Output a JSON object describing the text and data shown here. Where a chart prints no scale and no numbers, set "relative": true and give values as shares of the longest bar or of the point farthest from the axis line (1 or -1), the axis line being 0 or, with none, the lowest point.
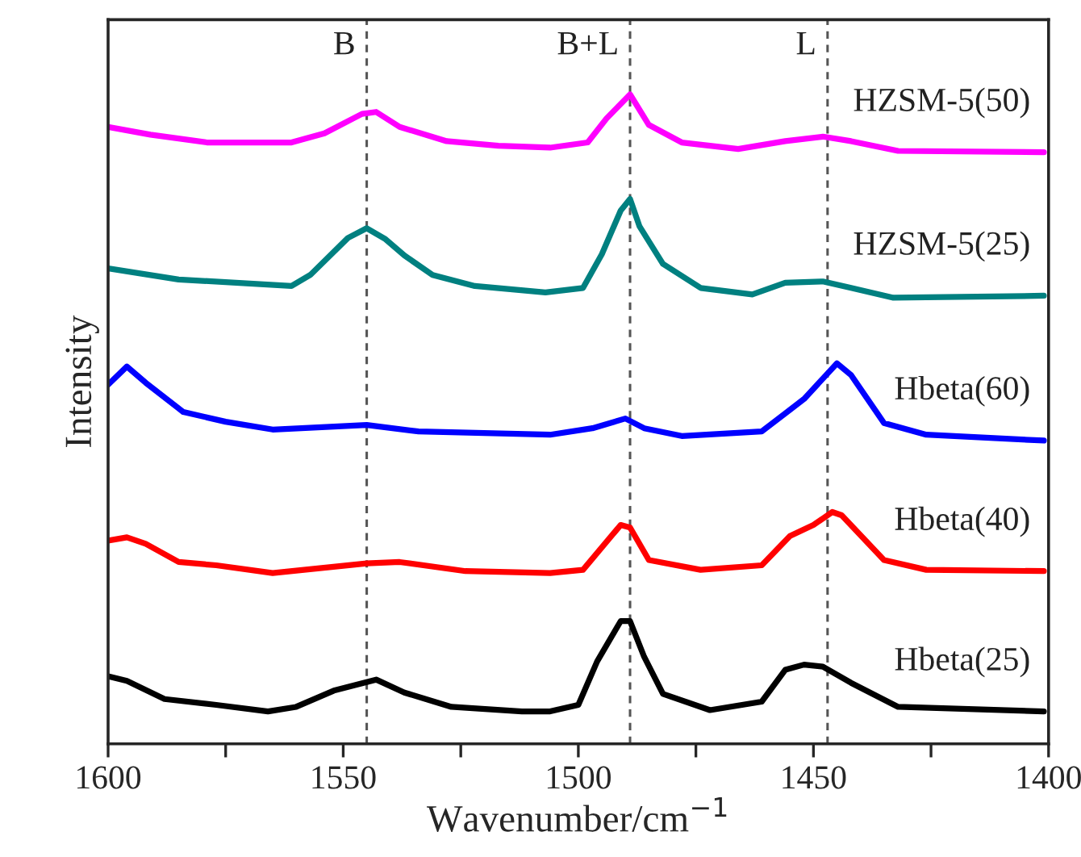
{
  "chart_data": {
    "type": "line",
    "relative": true,
    "xlabel": "Wavenumber/cm$^{−1}$",
    "ylabel": "Intensity",
    "xlim": [
      1600,
      1400
    ],
    "xticks": [
      1600,
      {
        "value": 1575,
        "label": null
      },
      1550,
      {
        "value": 1525,
        "label": null
      },
      1500,
      {
        "value": 1475,
        "label": null
      },
      1450,
      {
        "value": 1425,
        "label": null
      },
      1400
    ],
    "grid": false,
    "legend": false,
    "marker": "none",
    "line_style": "solid",
    "ref_lines": [
      {
        "axis": "x",
        "value": 1545,
        "label": "B",
        "color": "#555555",
        "line_style": "dashed"
      },
      {
        "axis": "x",
        "value": 1489,
        "label": "B+L",
        "color": "#555555",
        "line_style": "dashed"
      },
      {
        "axis": "x",
        "value": 1447,
        "label": "L",
        "color": "#555555",
        "line_style": "dashed"
      }
    ],
    "series": [
      {
        "name": "HZSM-5(50)",
        "color": "#ff00ff",
        "x": [
          1600,
          1591,
          1579,
          1561,
          1554,
          1546,
          1543,
          1538,
          1528,
          1517,
          1506,
          1498,
          1494,
          1489,
          1485,
          1478,
          1466,
          1456,
          1448,
          1442,
          1432,
          1401
        ],
        "values": [
          0.95,
          0.938,
          0.926,
          0.926,
          0.94,
          0.97,
          0.973,
          0.95,
          0.928,
          0.921,
          0.918,
          0.926,
          0.963,
          1.0,
          0.953,
          0.926,
          0.916,
          0.928,
          0.935,
          0.928,
          0.913,
          0.911
        ]
      },
      {
        "name": "HZSM-5(25)",
        "color": "#008080",
        "x": [
          1600,
          1585,
          1561,
          1557,
          1549,
          1545,
          1541,
          1537,
          1531,
          1522,
          1507,
          1499,
          1495,
          1491,
          1489,
          1487,
          1482,
          1474,
          1463,
          1456,
          1448,
          1442,
          1433,
          1401
        ],
        "values": [
          0.732,
          0.715,
          0.705,
          0.722,
          0.779,
          0.794,
          0.777,
          0.752,
          0.722,
          0.705,
          0.695,
          0.702,
          0.754,
          0.821,
          0.839,
          0.797,
          0.739,
          0.702,
          0.692,
          0.71,
          0.712,
          0.702,
          0.687,
          0.69
        ]
      },
      {
        "name": "Hbeta(60)",
        "color": "#0000ff",
        "x": [
          1600,
          1596,
          1592,
          1584,
          1575,
          1565,
          1545,
          1534,
          1506,
          1497,
          1490,
          1486,
          1478,
          1461,
          1452,
          1445,
          1442,
          1435,
          1426,
          1401
        ],
        "values": [
          0.553,
          0.581,
          0.556,
          0.511,
          0.496,
          0.484,
          0.491,
          0.481,
          0.476,
          0.486,
          0.501,
          0.486,
          0.474,
          0.481,
          0.531,
          0.586,
          0.568,
          0.494,
          0.476,
          0.467
        ]
      },
      {
        "name": "Hbeta(40)",
        "color": "#ff0000",
        "x": [
          1600,
          1596,
          1592,
          1585,
          1577,
          1565,
          1545,
          1538,
          1524,
          1506,
          1499,
          1491,
          1489,
          1485,
          1474,
          1461,
          1455,
          1450,
          1446,
          1444,
          1435,
          1426,
          1401
        ],
        "values": [
          0.313,
          0.318,
          0.308,
          0.28,
          0.275,
          0.263,
          0.278,
          0.28,
          0.266,
          0.263,
          0.268,
          0.337,
          0.333,
          0.283,
          0.268,
          0.275,
          0.32,
          0.337,
          0.357,
          0.352,
          0.283,
          0.268,
          0.266
        ]
      },
      {
        "name": "Hbeta(25)",
        "color": "#000000",
        "x": [
          1600,
          1596,
          1588,
          1577,
          1566,
          1560,
          1552,
          1543,
          1537,
          1527,
          1512,
          1506,
          1500,
          1496,
          1491,
          1489,
          1486,
          1482,
          1472,
          1461,
          1456,
          1452,
          1448,
          1442,
          1432,
          1401
        ],
        "values": [
          0.104,
          0.097,
          0.069,
          0.06,
          0.05,
          0.057,
          0.082,
          0.099,
          0.079,
          0.057,
          0.05,
          0.05,
          0.06,
          0.127,
          0.189,
          0.189,
          0.134,
          0.077,
          0.052,
          0.065,
          0.114,
          0.122,
          0.119,
          0.094,
          0.057,
          0.05
        ]
      }
    ]
  }
}
